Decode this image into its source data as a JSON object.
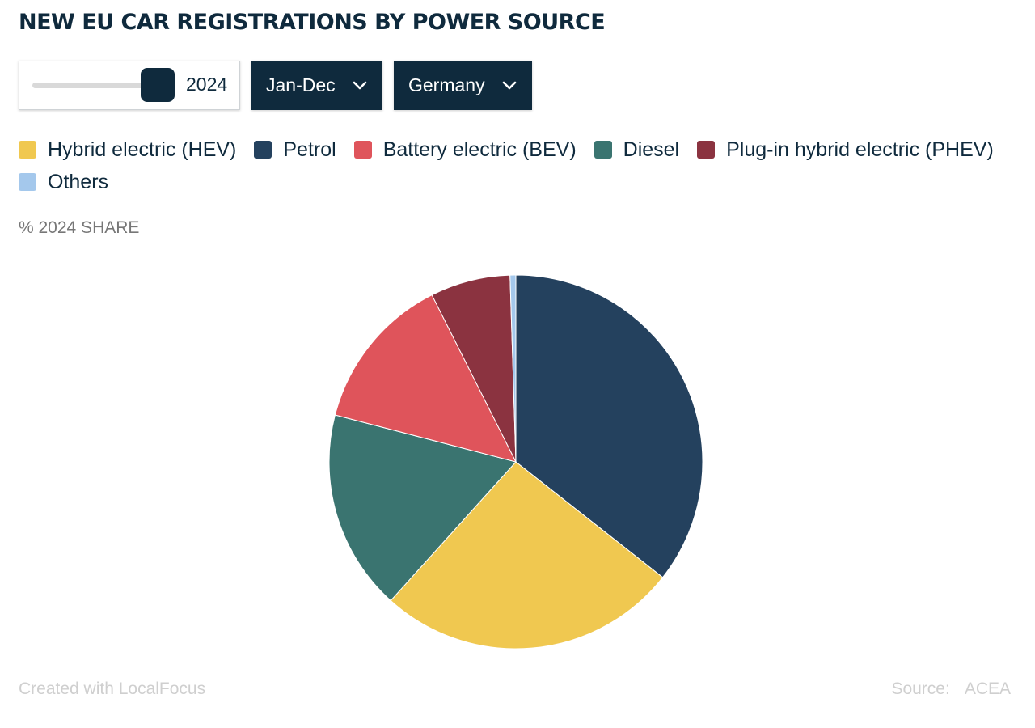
{
  "title": "NEW EU CAR REGISTRATIONS BY POWER SOURCE",
  "controls": {
    "year_value": "2024",
    "year_slider_position": 1.0,
    "period_label": "Jan-Dec",
    "country_label": "Germany"
  },
  "legend": [
    {
      "label": "Hybrid electric (HEV)",
      "color": "#f0c850"
    },
    {
      "label": "Petrol",
      "color": "#24415e"
    },
    {
      "label": "Battery electric (BEV)",
      "color": "#df545b"
    },
    {
      "label": "Diesel",
      "color": "#3a7470"
    },
    {
      "label": "Plug-in hybrid electric (PHEV)",
      "color": "#8b3340"
    },
    {
      "label": "Others",
      "color": "#a4c8ec"
    }
  ],
  "share_label": "% 2024 SHARE",
  "chart_data": {
    "type": "pie",
    "slices": [
      {
        "name": "Petrol",
        "value": 35.5,
        "color": "#24415e"
      },
      {
        "name": "Hybrid electric (HEV)",
        "value": 26.0,
        "color": "#f0c850"
      },
      {
        "name": "Diesel",
        "value": 17.3,
        "color": "#3a7470"
      },
      {
        "name": "Battery electric (BEV)",
        "value": 13.5,
        "color": "#df545b"
      },
      {
        "name": "Plug-in hybrid electric (PHEV)",
        "value": 6.9,
        "color": "#8b3340"
      },
      {
        "name": "Others",
        "value": 0.5,
        "color": "#a4c8ec"
      }
    ]
  },
  "footer": {
    "created_with": "Created with LocalFocus",
    "source_label": "Source:",
    "source_value": "ACEA"
  }
}
